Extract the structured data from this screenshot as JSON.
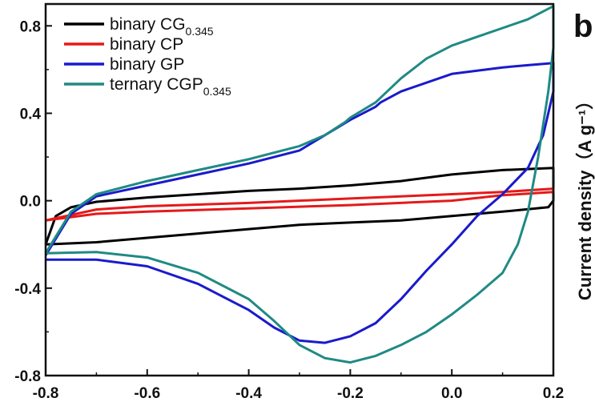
{
  "panel_letter": "b",
  "chart_data": {
    "type": "line",
    "xlabel": "",
    "ylabel": "Current density（A g⁻¹）",
    "xlim": [
      -0.8,
      0.2
    ],
    "ylim": [
      -0.8,
      0.9
    ],
    "x_tick_labels": [
      "-0.8",
      "-0.6",
      "-0.4",
      "-0.2",
      "0.0",
      "0.2"
    ],
    "y_tick_labels": [
      "-0.8",
      "-0.4",
      "0.0",
      "0.4",
      "0.8"
    ],
    "x_ticks": [
      -0.8,
      -0.6,
      -0.4,
      -0.2,
      0.0,
      0.2
    ],
    "y_ticks": [
      -0.8,
      -0.4,
      0.0,
      0.4,
      0.8
    ],
    "grid": false,
    "legend_position": "top-left",
    "series": [
      {
        "name": "binary CG",
        "name_subscript": "0.345",
        "color": "#000000",
        "points": [
          [
            -0.8,
            -0.2
          ],
          [
            -0.78,
            -0.07
          ],
          [
            -0.75,
            -0.03
          ],
          [
            -0.7,
            -0.005
          ],
          [
            -0.6,
            0.015
          ],
          [
            -0.5,
            0.03
          ],
          [
            -0.4,
            0.045
          ],
          [
            -0.3,
            0.055
          ],
          [
            -0.2,
            0.07
          ],
          [
            -0.1,
            0.09
          ],
          [
            0.0,
            0.12
          ],
          [
            0.1,
            0.14
          ],
          [
            0.2,
            0.15
          ],
          [
            0.2,
            0.0
          ],
          [
            0.19,
            -0.03
          ],
          [
            0.1,
            -0.05
          ],
          [
            0.0,
            -0.07
          ],
          [
            -0.1,
            -0.09
          ],
          [
            -0.2,
            -0.1
          ],
          [
            -0.3,
            -0.11
          ],
          [
            -0.4,
            -0.13
          ],
          [
            -0.5,
            -0.15
          ],
          [
            -0.6,
            -0.17
          ],
          [
            -0.7,
            -0.19
          ],
          [
            -0.8,
            -0.2
          ]
        ]
      },
      {
        "name": "binary CP",
        "color": "#e41a1a",
        "points": [
          [
            -0.8,
            -0.09
          ],
          [
            -0.7,
            -0.04
          ],
          [
            -0.6,
            -0.025
          ],
          [
            -0.4,
            -0.01
          ],
          [
            -0.2,
            0.01
          ],
          [
            0.0,
            0.03
          ],
          [
            0.1,
            0.04
          ],
          [
            0.2,
            0.055
          ],
          [
            0.2,
            0.04
          ],
          [
            0.1,
            0.025
          ],
          [
            0.0,
            0.0
          ],
          [
            -0.2,
            -0.02
          ],
          [
            -0.4,
            -0.035
          ],
          [
            -0.6,
            -0.05
          ],
          [
            -0.7,
            -0.06
          ],
          [
            -0.8,
            -0.09
          ]
        ]
      },
      {
        "name": "binary GP",
        "color": "#1a1acc",
        "points": [
          [
            -0.8,
            -0.25
          ],
          [
            -0.75,
            -0.06
          ],
          [
            -0.7,
            0.02
          ],
          [
            -0.6,
            0.07
          ],
          [
            -0.5,
            0.12
          ],
          [
            -0.4,
            0.17
          ],
          [
            -0.3,
            0.23
          ],
          [
            -0.25,
            0.3
          ],
          [
            -0.2,
            0.37
          ],
          [
            -0.15,
            0.43
          ],
          [
            -0.14,
            0.45
          ],
          [
            -0.1,
            0.5
          ],
          [
            0.0,
            0.58
          ],
          [
            0.1,
            0.61
          ],
          [
            0.15,
            0.62
          ],
          [
            0.2,
            0.63
          ],
          [
            0.2,
            0.5
          ],
          [
            0.18,
            0.3
          ],
          [
            0.15,
            0.15
          ],
          [
            0.1,
            0.03
          ],
          [
            0.05,
            -0.07
          ],
          [
            0.0,
            -0.2
          ],
          [
            -0.05,
            -0.32
          ],
          [
            -0.1,
            -0.45
          ],
          [
            -0.15,
            -0.56
          ],
          [
            -0.2,
            -0.62
          ],
          [
            -0.25,
            -0.65
          ],
          [
            -0.3,
            -0.64
          ],
          [
            -0.35,
            -0.58
          ],
          [
            -0.4,
            -0.5
          ],
          [
            -0.5,
            -0.38
          ],
          [
            -0.6,
            -0.3
          ],
          [
            -0.7,
            -0.27
          ],
          [
            -0.8,
            -0.27
          ]
        ]
      },
      {
        "name": "ternary CGP",
        "name_subscript": "0.345",
        "color": "#1f8a84",
        "points": [
          [
            -0.8,
            -0.24
          ],
          [
            -0.75,
            -0.05
          ],
          [
            -0.7,
            0.03
          ],
          [
            -0.6,
            0.09
          ],
          [
            -0.5,
            0.14
          ],
          [
            -0.4,
            0.19
          ],
          [
            -0.3,
            0.25
          ],
          [
            -0.25,
            0.3
          ],
          [
            -0.21,
            0.36
          ],
          [
            -0.2,
            0.38
          ],
          [
            -0.15,
            0.45
          ],
          [
            -0.1,
            0.56
          ],
          [
            -0.05,
            0.65
          ],
          [
            0.0,
            0.71
          ],
          [
            0.05,
            0.75
          ],
          [
            0.1,
            0.79
          ],
          [
            0.15,
            0.83
          ],
          [
            0.2,
            0.89
          ],
          [
            0.2,
            0.7
          ],
          [
            0.19,
            0.5
          ],
          [
            0.17,
            0.2
          ],
          [
            0.15,
            -0.05
          ],
          [
            0.13,
            -0.2
          ],
          [
            0.1,
            -0.33
          ],
          [
            0.05,
            -0.43
          ],
          [
            0.0,
            -0.52
          ],
          [
            -0.05,
            -0.6
          ],
          [
            -0.1,
            -0.66
          ],
          [
            -0.15,
            -0.71
          ],
          [
            -0.2,
            -0.74
          ],
          [
            -0.25,
            -0.72
          ],
          [
            -0.3,
            -0.66
          ],
          [
            -0.35,
            -0.55
          ],
          [
            -0.4,
            -0.45
          ],
          [
            -0.5,
            -0.33
          ],
          [
            -0.6,
            -0.26
          ],
          [
            -0.7,
            -0.235
          ],
          [
            -0.8,
            -0.24
          ]
        ]
      }
    ]
  }
}
